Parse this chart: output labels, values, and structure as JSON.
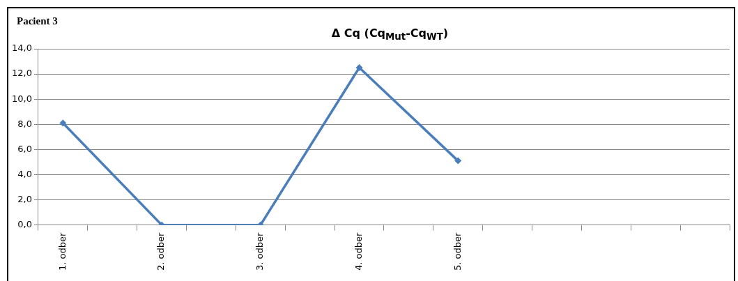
{
  "chart_data": {
    "type": "line",
    "title": "Δ Cq (Cq$_{Mut}$-Cq$_{WT}$)",
    "subtitle": "Pacient 3",
    "categories": [
      "1. odber",
      null,
      "2. odber",
      null,
      "3. odber",
      null,
      "4. odber",
      null,
      "5. odber",
      null,
      null,
      null,
      null,
      null
    ],
    "series": [
      {
        "color": "#4a7ebb",
        "values": [
          8.1,
          null,
          0,
          null,
          0,
          null,
          12.5,
          null,
          5.1,
          null,
          null,
          null,
          null,
          null
        ]
      }
    ],
    "ylim": [
      0,
      14
    ],
    "yticks": [
      {
        "value": 0,
        "label": "0,0"
      },
      {
        "value": 2,
        "label": "2,0"
      },
      {
        "value": 4,
        "label": "4,0"
      },
      {
        "value": 6,
        "label": "6,0"
      },
      {
        "value": 8,
        "label": "8,0"
      },
      {
        "value": 10,
        "label": "10,0"
      },
      {
        "value": 12,
        "label": "12,0"
      },
      {
        "value": 14,
        "label": "14,0"
      }
    ],
    "grid": "y",
    "legend": false,
    "marker": "diamond",
    "line_style": "solid"
  }
}
